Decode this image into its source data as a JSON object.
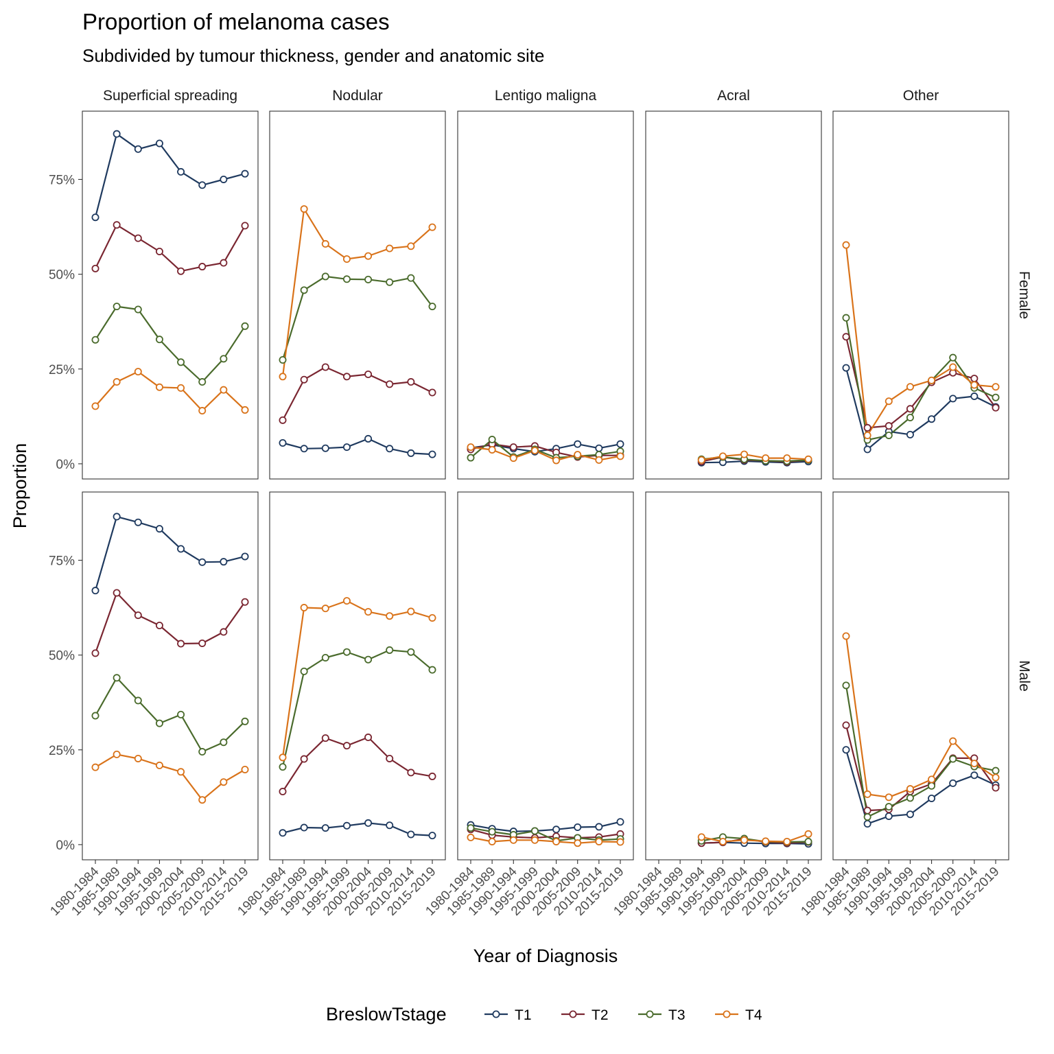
{
  "chart_data": {
    "type": "line",
    "title": "Proportion of melanoma cases",
    "subtitle": "Subdivided by tumour thickness, gender and anatomic site",
    "xlabel": "Year of Diagnosis",
    "ylabel": "Proportion",
    "ylim": [
      -0.04,
      0.93
    ],
    "yticks": [
      0,
      0.25,
      0.5,
      0.75
    ],
    "ytick_labels": [
      "0%",
      "25%",
      "50%",
      "75%"
    ],
    "categories": [
      "1980-1984",
      "1985-1989",
      "1990-1994",
      "1995-1999",
      "2000-2004",
      "2005-2009",
      "2010-2014",
      "2015-2019"
    ],
    "columns": [
      "Superficial spreading",
      "Nodular",
      "Lentigo maligna",
      "Acral",
      "Other"
    ],
    "rows": [
      "Female",
      "Male"
    ],
    "legend": {
      "title": "BreslowTstage",
      "position": "bottom",
      "entries": [
        "T1",
        "T2",
        "T3",
        "T4"
      ]
    },
    "colors": {
      "T1": "#1f3a5f",
      "T2": "#7a2631",
      "T3": "#4a6b2c",
      "T4": "#d9731a"
    },
    "grid": false,
    "panels": [
      {
        "row": "Female",
        "column": "Superficial spreading",
        "series": [
          {
            "name": "T1",
            "values": [
              0.65,
              0.87,
              0.83,
              0.845,
              0.77,
              0.735,
              0.75,
              0.765
            ]
          },
          {
            "name": "T2",
            "values": [
              0.515,
              0.63,
              0.595,
              0.56,
              0.508,
              0.52,
              0.53,
              0.628
            ]
          },
          {
            "name": "T3",
            "values": [
              0.327,
              0.415,
              0.407,
              0.328,
              0.268,
              0.216,
              0.277,
              0.363
            ]
          },
          {
            "name": "T4",
            "values": [
              0.152,
              0.216,
              0.243,
              0.202,
              0.2,
              0.14,
              0.195,
              0.142
            ]
          }
        ]
      },
      {
        "row": "Female",
        "column": "Nodular",
        "series": [
          {
            "name": "T1",
            "values": [
              0.055,
              0.04,
              0.041,
              0.044,
              0.066,
              0.04,
              0.028,
              0.025
            ]
          },
          {
            "name": "T2",
            "values": [
              0.115,
              0.222,
              0.255,
              0.23,
              0.236,
              0.21,
              0.216,
              0.188
            ]
          },
          {
            "name": "T3",
            "values": [
              0.274,
              0.458,
              0.494,
              0.487,
              0.486,
              0.479,
              0.49,
              0.415
            ]
          },
          {
            "name": "T4",
            "values": [
              0.23,
              0.672,
              0.58,
              0.54,
              0.548,
              0.568,
              0.574,
              0.624
            ]
          }
        ]
      },
      {
        "row": "Female",
        "column": "Lentigo maligna",
        "series": [
          {
            "name": "T1",
            "values": [
              0.042,
              0.05,
              0.04,
              0.032,
              0.04,
              0.052,
              0.041,
              0.052
            ]
          },
          {
            "name": "T2",
            "values": [
              0.038,
              0.052,
              0.044,
              0.047,
              0.03,
              0.018,
              0.022,
              0.022
            ]
          },
          {
            "name": "T3",
            "values": [
              0.016,
              0.064,
              0.018,
              0.038,
              0.016,
              0.02,
              0.024,
              0.033
            ]
          },
          {
            "name": "T4",
            "values": [
              0.044,
              0.037,
              0.015,
              0.035,
              0.009,
              0.024,
              0.01,
              0.02
            ]
          }
        ]
      },
      {
        "row": "Female",
        "column": "Acral",
        "series": [
          {
            "name": "T1",
            "values": [
              null,
              null,
              0.003,
              0.004,
              0.007,
              0.005,
              0.003,
              0.006
            ]
          },
          {
            "name": "T2",
            "values": [
              null,
              null,
              0.006,
              0.018,
              0.01,
              0.008,
              0.005,
              0.01
            ]
          },
          {
            "name": "T3",
            "values": [
              null,
              null,
              0.012,
              0.018,
              0.012,
              0.008,
              0.007,
              0.01
            ]
          },
          {
            "name": "T4",
            "values": [
              null,
              null,
              0.01,
              0.02,
              0.025,
              0.015,
              0.015,
              0.012
            ]
          }
        ]
      },
      {
        "row": "Female",
        "column": "Other",
        "series": [
          {
            "name": "T1",
            "values": [
              0.253,
              0.038,
              0.085,
              0.077,
              0.118,
              0.172,
              0.178,
              0.15
            ]
          },
          {
            "name": "T2",
            "values": [
              0.335,
              0.095,
              0.1,
              0.145,
              0.215,
              0.24,
              0.225,
              0.148
            ]
          },
          {
            "name": "T3",
            "values": [
              0.385,
              0.063,
              0.075,
              0.122,
              0.22,
              0.28,
              0.2,
              0.175
            ]
          },
          {
            "name": "T4",
            "values": [
              0.577,
              0.075,
              0.165,
              0.203,
              0.22,
              0.255,
              0.208,
              0.203
            ]
          }
        ]
      },
      {
        "row": "Male",
        "column": "Superficial spreading",
        "series": [
          {
            "name": "T1",
            "values": [
              0.67,
              0.865,
              0.85,
              0.833,
              0.78,
              0.745,
              0.746,
              0.76
            ]
          },
          {
            "name": "T2",
            "values": [
              0.505,
              0.664,
              0.605,
              0.578,
              0.53,
              0.531,
              0.561,
              0.64
            ]
          },
          {
            "name": "T3",
            "values": [
              0.34,
              0.44,
              0.38,
              0.32,
              0.343,
              0.245,
              0.27,
              0.325
            ]
          },
          {
            "name": "T4",
            "values": [
              0.204,
              0.238,
              0.227,
              0.209,
              0.192,
              0.118,
              0.165,
              0.198
            ]
          }
        ]
      },
      {
        "row": "Male",
        "column": "Nodular",
        "series": [
          {
            "name": "T1",
            "values": [
              0.031,
              0.045,
              0.044,
              0.05,
              0.057,
              0.051,
              0.027,
              0.024
            ]
          },
          {
            "name": "T2",
            "values": [
              0.14,
              0.226,
              0.281,
              0.261,
              0.283,
              0.227,
              0.19,
              0.18
            ]
          },
          {
            "name": "T3",
            "values": [
              0.205,
              0.457,
              0.493,
              0.508,
              0.488,
              0.513,
              0.508,
              0.461
            ]
          },
          {
            "name": "T4",
            "values": [
              0.23,
              0.625,
              0.623,
              0.643,
              0.614,
              0.603,
              0.615,
              0.598
            ]
          }
        ]
      },
      {
        "row": "Male",
        "column": "Lentigo maligna",
        "series": [
          {
            "name": "T1",
            "values": [
              0.052,
              0.042,
              0.035,
              0.036,
              0.04,
              0.046,
              0.047,
              0.06
            ]
          },
          {
            "name": "T2",
            "values": [
              0.04,
              0.025,
              0.02,
              0.018,
              0.022,
              0.018,
              0.02,
              0.028
            ]
          },
          {
            "name": "T3",
            "values": [
              0.044,
              0.034,
              0.026,
              0.036,
              0.01,
              0.018,
              0.012,
              0.015
            ]
          },
          {
            "name": "T4",
            "values": [
              0.019,
              0.008,
              0.012,
              0.012,
              0.008,
              0.004,
              0.008,
              0.007
            ]
          }
        ]
      },
      {
        "row": "Male",
        "column": "Acral",
        "series": [
          {
            "name": "T1",
            "values": [
              null,
              null,
              0.004,
              0.006,
              0.004,
              0.003,
              0.003,
              0.002
            ]
          },
          {
            "name": "T2",
            "values": [
              null,
              null,
              0.004,
              0.006,
              0.015,
              0.007,
              0.004,
              0.007
            ]
          },
          {
            "name": "T3",
            "values": [
              null,
              null,
              0.01,
              0.02,
              0.016,
              0.008,
              0.007,
              0.008
            ]
          },
          {
            "name": "T4",
            "values": [
              null,
              null,
              0.02,
              0.008,
              0.012,
              0.009,
              0.008,
              0.028
            ]
          }
        ]
      },
      {
        "row": "Male",
        "column": "Other",
        "series": [
          {
            "name": "T1",
            "values": [
              0.25,
              0.055,
              0.075,
              0.08,
              0.122,
              0.162,
              0.183,
              0.157
            ]
          },
          {
            "name": "T2",
            "values": [
              0.315,
              0.09,
              0.093,
              0.14,
              0.16,
              0.228,
              0.228,
              0.15
            ]
          },
          {
            "name": "T3",
            "values": [
              0.42,
              0.073,
              0.1,
              0.123,
              0.155,
              0.226,
              0.206,
              0.195
            ]
          },
          {
            "name": "T4",
            "values": [
              0.55,
              0.133,
              0.125,
              0.147,
              0.172,
              0.273,
              0.214,
              0.177
            ]
          }
        ]
      }
    ]
  }
}
